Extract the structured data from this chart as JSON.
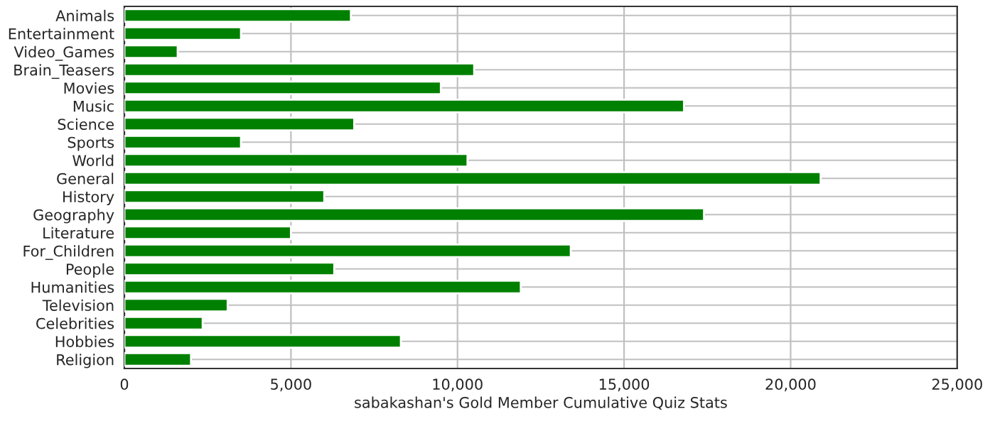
{
  "chart_data": {
    "type": "bar",
    "orientation": "horizontal",
    "xlabel": "sabakashan's Gold Member Cumulative Quiz Stats",
    "categories": [
      "Animals",
      "Entertainment",
      "Video_Games",
      "Brain_Teasers",
      "Movies",
      "Music",
      "Science",
      "Sports",
      "World",
      "General",
      "History",
      "Geography",
      "Literature",
      "For_Children",
      "People",
      "Humanities",
      "Television",
      "Celebrities",
      "Hobbies",
      "Religion"
    ],
    "values": [
      6800,
      3500,
      1600,
      10500,
      9500,
      16800,
      6900,
      3500,
      10300,
      20900,
      6000,
      17400,
      5000,
      13400,
      6300,
      11900,
      3100,
      2350,
      8300,
      2000
    ],
    "color": "#008000",
    "xlim": [
      0,
      25000
    ],
    "xticks": [
      {
        "value": 0,
        "label": "0"
      },
      {
        "value": 5000,
        "label": "5,000"
      },
      {
        "value": 10000,
        "label": "10,000"
      },
      {
        "value": 15000,
        "label": "15,000"
      },
      {
        "value": 20000,
        "label": "20,000"
      },
      {
        "value": 25000,
        "label": "25,000"
      }
    ],
    "grid": true
  }
}
